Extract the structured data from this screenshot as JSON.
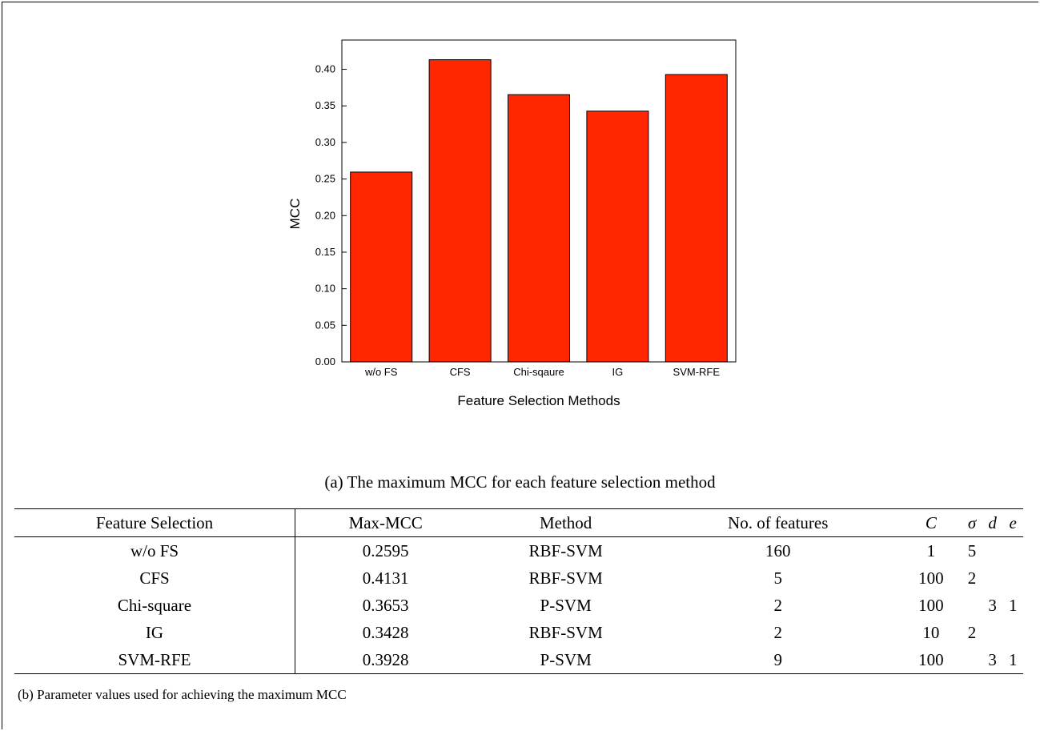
{
  "chart_data": {
    "type": "bar",
    "categories": [
      "w/o FS",
      "CFS",
      "Chi-sqaure",
      "IG",
      "SVM-RFE"
    ],
    "values": [
      0.2595,
      0.4131,
      0.3653,
      0.3428,
      0.3928
    ],
    "xlabel": "Feature Selection Methods",
    "ylabel": "MCC",
    "ylim": [
      0,
      0.44
    ],
    "yticks": [
      "0.00",
      "0.05",
      "0.10",
      "0.15",
      "0.20",
      "0.25",
      "0.30",
      "0.35",
      "0.40"
    ],
    "bar_color": "#ff2600",
    "grid": false
  },
  "caption_a": "(a) The maximum MCC for each feature selection method",
  "table": {
    "headers": [
      "Feature Selection",
      "Max-MCC",
      "Method",
      "No. of features",
      "C",
      "σ",
      "d",
      "e"
    ],
    "rows": [
      [
        "w/o FS",
        "0.2595",
        "RBF-SVM",
        "160",
        "1",
        "5",
        "",
        ""
      ],
      [
        "CFS",
        "0.4131",
        "RBF-SVM",
        "5",
        "100",
        "2",
        "",
        ""
      ],
      [
        "Chi-square",
        "0.3653",
        "P-SVM",
        "2",
        "100",
        "",
        "3",
        "1"
      ],
      [
        "IG",
        "0.3428",
        "RBF-SVM",
        "2",
        "10",
        "2",
        "",
        ""
      ],
      [
        "SVM-RFE",
        "0.3928",
        "P-SVM",
        "9",
        "100",
        "",
        "3",
        "1"
      ]
    ]
  },
  "caption_b": "(b) Parameter values used for achieving the maximum MCC"
}
